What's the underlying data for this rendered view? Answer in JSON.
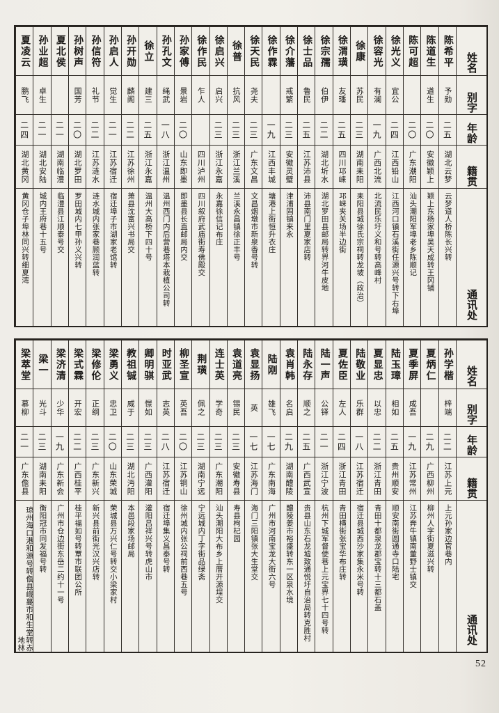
{
  "page": {
    "number": "52"
  },
  "headers": {
    "name": "姓名",
    "zi": "别字",
    "age": "年龄",
    "origin": "籍贯",
    "address": "通讯处"
  },
  "tables": [
    {
      "entries": [
        {
          "name": "陈希平",
          "zi": "予勋",
          "age": "二五",
          "origin": "湖北云梦",
          "address": "云梦道人桥陈长兴转"
        },
        {
          "name": "陈道生",
          "zi": "道生",
          "age": "二〇",
          "origin": "安徽颖上",
          "address": "颖上东杨家埠吴天成转王冈铺"
        },
        {
          "name": "陈可超",
          "zi": "",
          "age": "二〇",
          "origin": "广东潮阳",
          "address": "汕头潮阳军埠老乡陈顺记"
        },
        {
          "name": "徐光义",
          "zi": "宜公",
          "age": "二四",
          "origin": "江西铅山",
          "address": "江西河口镇石溪街任源兴号转下右埠"
        },
        {
          "name": "徐容光",
          "zi": "有澜",
          "age": "一九",
          "origin": "广西北流",
          "address": "北流民乐圩义和号转高峰村"
        },
        {
          "name": "徐康",
          "zi": "苏民",
          "age": "二三",
          "origin": "湖南耒阳",
          "address": "耒阳县城徐氏宗祠转龙坡（政治）"
        },
        {
          "name": "徐渭璜",
          "zi": "友璠",
          "age": "二五",
          "origin": "四川邛崃",
          "address": "邛崃夹关场半边街"
        },
        {
          "name": "徐宗孺",
          "zi": "伯伊",
          "age": "二二",
          "origin": "湖北圻水",
          "address": "湖北罗田县邮局转界河牛皮地"
        },
        {
          "name": "徐士品",
          "zi": "鲁民",
          "age": "二五",
          "origin": "江苏沛县",
          "address": "沛县南门里夏家店转"
        },
        {
          "name": "徐介藩",
          "zi": "戒繁",
          "age": "二三",
          "origin": "安徽灵璧",
          "address": "津浦固镇来永"
        },
        {
          "name": "徐作霖",
          "zi": "",
          "age": "一九",
          "origin": "江西丰城",
          "address": "塘港上街恒升衣庄"
        },
        {
          "name": "徐天民",
          "zi": "尧夫",
          "age": "二三",
          "origin": "广东文昌",
          "address": "文昌烟墩市新泉香号转"
        },
        {
          "name": "徐普",
          "zi": "抗风",
          "age": "二三",
          "origin": "浙江兰溪",
          "address": "兰溪永昌镇徐正丰号"
        },
        {
          "name": "徐启兴",
          "zi": "启兴",
          "age": "二三",
          "origin": "浙江永嘉",
          "address": "永嘉徐信记布庄"
        },
        {
          "name": "徐作民",
          "zi": "乍人",
          "age": "",
          "origin": "四川泸州",
          "address": "四川叙府武庙街寿佛殿交"
        },
        {
          "name": "孙家傅",
          "zi": "景岩",
          "age": "二〇",
          "origin": "山东即墨",
          "address": "即墨县长直邮局内交"
        },
        {
          "name": "孙孔文",
          "zi": "绳武",
          "age": "一八",
          "origin": "浙江温州",
          "address": "温州西门内后营巷塔本栽植公司转"
        },
        {
          "name": "徐立",
          "zi": "建三",
          "age": "二五",
          "origin": "浙江永嘉",
          "address": "温州大高桥下四十号"
        },
        {
          "name": "孙开勋",
          "zi": "麟阁",
          "age": "二二",
          "origin": "江苏徐州",
          "address": "萧县沈富兴书局交"
        },
        {
          "name": "孙启人",
          "zi": "觉生",
          "age": "二一",
          "origin": "江苏宿迁",
          "address": "宿迁埠子市湖家老馆转"
        },
        {
          "name": "孙信符",
          "zi": "礼节",
          "age": "二二",
          "origin": "江苏涟水",
          "address": "涟水城内张家巷顾润蓝转"
        },
        {
          "name": "孙树声",
          "zi": "国芳",
          "age": "二〇",
          "origin": "湖北罗田",
          "address": "罗田城内七甲孙义兴转"
        },
        {
          "name": "夏北侯",
          "zi": "",
          "age": "二一",
          "origin": "湖南临澧",
          "address": "临澧县江顺泰号交"
        },
        {
          "name": "孙业超",
          "zi": "卓生",
          "age": "二一",
          "origin": "湖北安陆",
          "address": "城内王府巷十五号"
        },
        {
          "name": "夏凌云",
          "zi": "鹏飞",
          "age": "二四",
          "origin": "湖北黄冈",
          "address": "黄冈仓子埠林同兴转细夏湾"
        }
      ]
    },
    {
      "entries": [
        {
          "name": "孙学楷",
          "zi": "梓端",
          "age": "二二",
          "origin": "江苏上元",
          "address": "上元孙家边官巷内"
        },
        {
          "name": "夏炳仁",
          "zi": "",
          "age": "二九",
          "origin": "广西柳州",
          "address": "柳州人字街夏滋兴转"
        },
        {
          "name": "夏季屏",
          "zi": "成吾",
          "age": "一九",
          "origin": "江苏常州",
          "address": "江苏奔牛镇南董野士镇交"
        },
        {
          "name": "陆玉璋",
          "zi": "相如",
          "age": "二五",
          "origin": "贵州顺安",
          "address": "顺安南街圆通寺口陆宅"
        },
        {
          "name": "夏显忠",
          "zi": "以忠",
          "age": "二二",
          "origin": "浙江青田",
          "address": "青田十都泉龙郡宝转十三都石盖"
        },
        {
          "name": "陆敬业",
          "zi": "乐群",
          "age": "一八",
          "origin": "江苏宿迁",
          "address": "宿迁县城西沙家集永米号转"
        },
        {
          "name": "夏佐臣",
          "zi": "左人",
          "age": "二四",
          "origin": "浙江青田",
          "address": "青田横街张宝华布庄转"
        },
        {
          "name": "陆一声",
          "zi": "公铎",
          "age": "二一",
          "origin": "浙江宁波",
          "address": "杭州下城军督使巷上元宝界七十四号转"
        },
        {
          "name": "陆永存",
          "zi": "顺之",
          "age": "二五",
          "origin": "广西武宣",
          "address": "贵县山东石龙墟致通悦圩自治局转克胜村"
        },
        {
          "name": "袁肖韩",
          "zi": "名启",
          "age": "二九",
          "origin": "湖南醴陵",
          "address": "醴陵姜市裕盛转东一区泉水境"
        },
        {
          "name": "陆刚",
          "zi": "雄飞",
          "age": "一七",
          "origin": "广东南海",
          "address": "广州市河南宝龙大街六号"
        },
        {
          "name": "袁显扬",
          "zi": "英",
          "age": "一七",
          "origin": "江苏海门",
          "address": "海门三阳镇张大生堂交"
        },
        {
          "name": "袁道亮",
          "zi": "锡民",
          "age": "二三",
          "origin": "安徽寿县",
          "address": "寿县枸杞园"
        },
        {
          "name": "连士英",
          "zi": "学奇",
          "age": "二三",
          "origin": "广东潮阳",
          "address": "汕头潮阳大布乡上厝开源埕交"
        },
        {
          "name": "荆璜",
          "zi": "佩之",
          "age": "二三",
          "origin": "湖南宁远",
          "address": "宁远城内丁字街品绿斋"
        },
        {
          "name": "柳圣宣",
          "zi": "英吾",
          "age": "二〇",
          "origin": "江苏铜山",
          "address": "徐州城内张公祠前西巷五号"
        },
        {
          "name": "时亚武",
          "zi": "志英",
          "age": "二八",
          "origin": "江苏宿迁",
          "address": "宿迁埠集义昌泰号转"
        },
        {
          "name": "卿明骐",
          "zi": "憬如",
          "age": "二三",
          "origin": "广西灌阳",
          "address": "灌阳吕祥兴号转虎山市"
        },
        {
          "name": "教祖铖",
          "zi": "威于",
          "age": "二三",
          "origin": "湖北沔阳",
          "address": "本邑段家场邮局"
        },
        {
          "name": "梁勇义",
          "zi": "忠卫",
          "age": "二〇",
          "origin": "山东荣城",
          "address": "荣城县万兴仁号转交小梁家村"
        },
        {
          "name": "梁修伦",
          "zi": "正纲",
          "age": "二三",
          "origin": "广东新兴",
          "address": "新兴县前街光汉兴店转"
        },
        {
          "name": "梁式霖",
          "zi": "开宏",
          "age": "二二",
          "origin": "广西桂平",
          "address": "桂平福如号转覃市联团公所"
        },
        {
          "name": "梁济清",
          "zi": "少华",
          "age": "一九",
          "origin": "广东新会",
          "address": "广州市仓边街东岳二约十一号"
        },
        {
          "name": "梁一",
          "zi": "光斗",
          "age": "二三",
          "origin": "湖南耒阳",
          "address": "衡阳冠市同发福号转"
        },
        {
          "name": "梁萃堂",
          "zi": "慕柳",
          "age": "二一",
          "origin": "广东儋县",
          "address": "琼州海口港和源号转儋县峨蔓市和生堂转赤地林"
        }
      ]
    }
  ]
}
